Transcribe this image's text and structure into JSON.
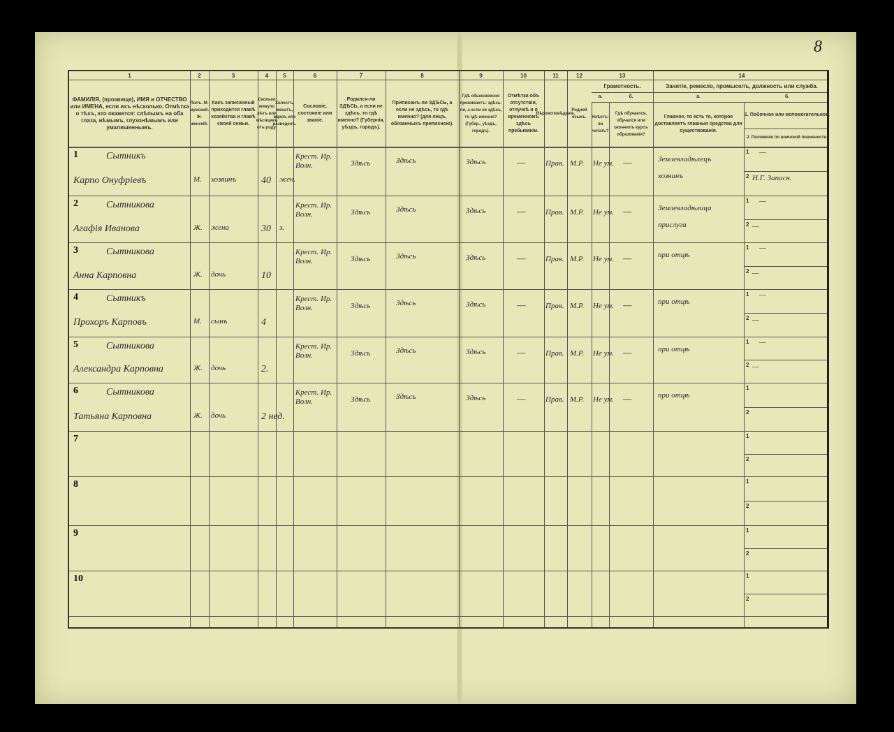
{
  "page_number": "8",
  "header": {
    "col_numbers": [
      "1",
      "2",
      "3",
      "4",
      "5",
      "6",
      "7",
      "8",
      "9",
      "10",
      "11",
      "12",
      "13",
      "14"
    ],
    "col1": "ФАМИЛІЯ, (прозвище), ИМЯ и ОТЧЕСТВО или ИМЕНА, если ихъ нѣсколько. Отмѣтка о тѣхъ, кто окажется: слѣпымъ на оба глаза, нѣмымъ, глухонѣмымъ или умалишеннымъ.",
    "col2": "Полъ. М-мужской. Ж-женскій.",
    "col3": "Какъ записанный приходится главѣ хозяйства и главѣ своей семьи.",
    "col4": "Сколько минуло лѣтъ или мѣсяцевъ отъ роду.",
    "col5": "Холостъ, женатъ, вдовъ или разведенъ.",
    "col6": "Сословіе, состояніе или званіе.",
    "col7": "Родился-ли ЗДѢСЬ, а если не здѣсь, то гдѣ именно? (Губернія, уѣздъ, городъ).",
    "col8": "Приписанъ-ли ЗДѢСЬ, а если не здѣсь, то гдѣ именно? (для лицъ, обязанныхъ приписною).",
    "col9": "Гдѣ обыкновенно проживаетъ: здѣсь-ли, а если не здѣсь, то гдѣ именно? (Губер., уѣздъ, городъ).",
    "col10": "Отмѣтка объ отсутствіи, отлучкѣ и о временномъ здѣсь пребываніи.",
    "col11": "Вѣроисповѣданіе.",
    "col12": "Родной языкъ.",
    "col13": "Грамотность.",
    "col13a_letter": "а.",
    "col13a": "Умѣетъ-ли читать?",
    "col13b_letter": "б.",
    "col13b": "Гдѣ обучается, обучался или окончилъ курсъ образованія?",
    "col14": "Занятіе, ремесло, промыселъ, должность или служба.",
    "col14a_letter": "а.",
    "col14a": "Главное, то есть то, которое доставляетъ главныя средства для существованія.",
    "col14b_letter": "б.",
    "col14b1": "1. Побочное или вспомогательное.",
    "col14b2": "2. Положеніе по воинской повинности."
  },
  "rows": [
    {
      "n": "1",
      "surname": "Сытникъ",
      "name": "Карпо Онуфріевъ",
      "sex": "М.",
      "relation": "хозяинъ",
      "age": "40",
      "marital": "жен.",
      "estate": "Крест. Ир. Волн.",
      "born": "Здѣсь",
      "registered": "Здѣсь",
      "resides": "Здѣсь",
      "absence": "—",
      "religion": "Прав.",
      "language": "М.Р.",
      "literate": "Не ум.",
      "schooling": "—",
      "occupation": "Землевладѣлецъ хозяинъ",
      "side1": "—",
      "side2": "Н.Г. Запасн."
    },
    {
      "n": "2",
      "surname": "Сытникова",
      "name": "Агафія Иванова",
      "sex": "Ж.",
      "relation": "жена",
      "age": "30",
      "marital": "з.",
      "estate": "Крест. Ир. Волн.",
      "born": "Здѣсь",
      "registered": "Здѣсь",
      "resides": "Здѣсь",
      "absence": "—",
      "religion": "Прав.",
      "language": "М.Р.",
      "literate": "Не ум.",
      "schooling": "—",
      "occupation": "Землевладѣлица прислуга",
      "side1": "—",
      "side2": "—"
    },
    {
      "n": "3",
      "surname": "Сытникова",
      "name": "Анна Карповна",
      "sex": "Ж.",
      "relation": "дочь",
      "age": "10",
      "marital": "",
      "estate": "Крест. Ир. Волн.",
      "born": "Здѣсь",
      "registered": "Здѣсь",
      "resides": "Здѣсь",
      "absence": "—",
      "religion": "Прав.",
      "language": "М.Р.",
      "literate": "Не ум.",
      "schooling": "—",
      "occupation": "при отцѣ",
      "side1": "—",
      "side2": "—"
    },
    {
      "n": "4",
      "surname": "Сытникъ",
      "name": "Прохоръ Карповъ",
      "sex": "М.",
      "relation": "сынъ",
      "age": "4",
      "marital": "",
      "estate": "Крест. Ир. Волн.",
      "born": "Здѣсь",
      "registered": "Здѣсь",
      "resides": "Здѣсь",
      "absence": "—",
      "religion": "Прав.",
      "language": "М.Р.",
      "literate": "Не ум.",
      "schooling": "—",
      "occupation": "при отцѣ",
      "side1": "—",
      "side2": "—"
    },
    {
      "n": "5",
      "surname": "Сытникова",
      "name": "Александра Карповна",
      "sex": "Ж.",
      "relation": "дочь",
      "age": "2.",
      "marital": "",
      "estate": "Крест. Ир. Волн.",
      "born": "Здѣсь",
      "registered": "Здѣсь",
      "resides": "Здѣсь",
      "absence": "—",
      "religion": "Прав.",
      "language": "М.Р.",
      "literate": "Не ум.",
      "schooling": "—",
      "occupation": "при отцѣ",
      "side1": "—",
      "side2": "—"
    },
    {
      "n": "6",
      "surname": "Сытникова",
      "name": "Татьяна Карповна",
      "sex": "Ж.",
      "relation": "дочь",
      "age": "2 нед.",
      "marital": "",
      "estate": "Крест. Ир. Волн.",
      "born": "Здѣсь",
      "registered": "Здѣсь",
      "resides": "Здѣсь",
      "absence": "—",
      "religion": "Прав.",
      "language": "М.Р.",
      "literate": "Не ум.",
      "schooling": "—",
      "occupation": "при отцѣ",
      "side1": "",
      "side2": ""
    },
    {
      "n": "7"
    },
    {
      "n": "8"
    },
    {
      "n": "9"
    },
    {
      "n": "10"
    }
  ],
  "sub_labels": [
    "1",
    "2"
  ]
}
